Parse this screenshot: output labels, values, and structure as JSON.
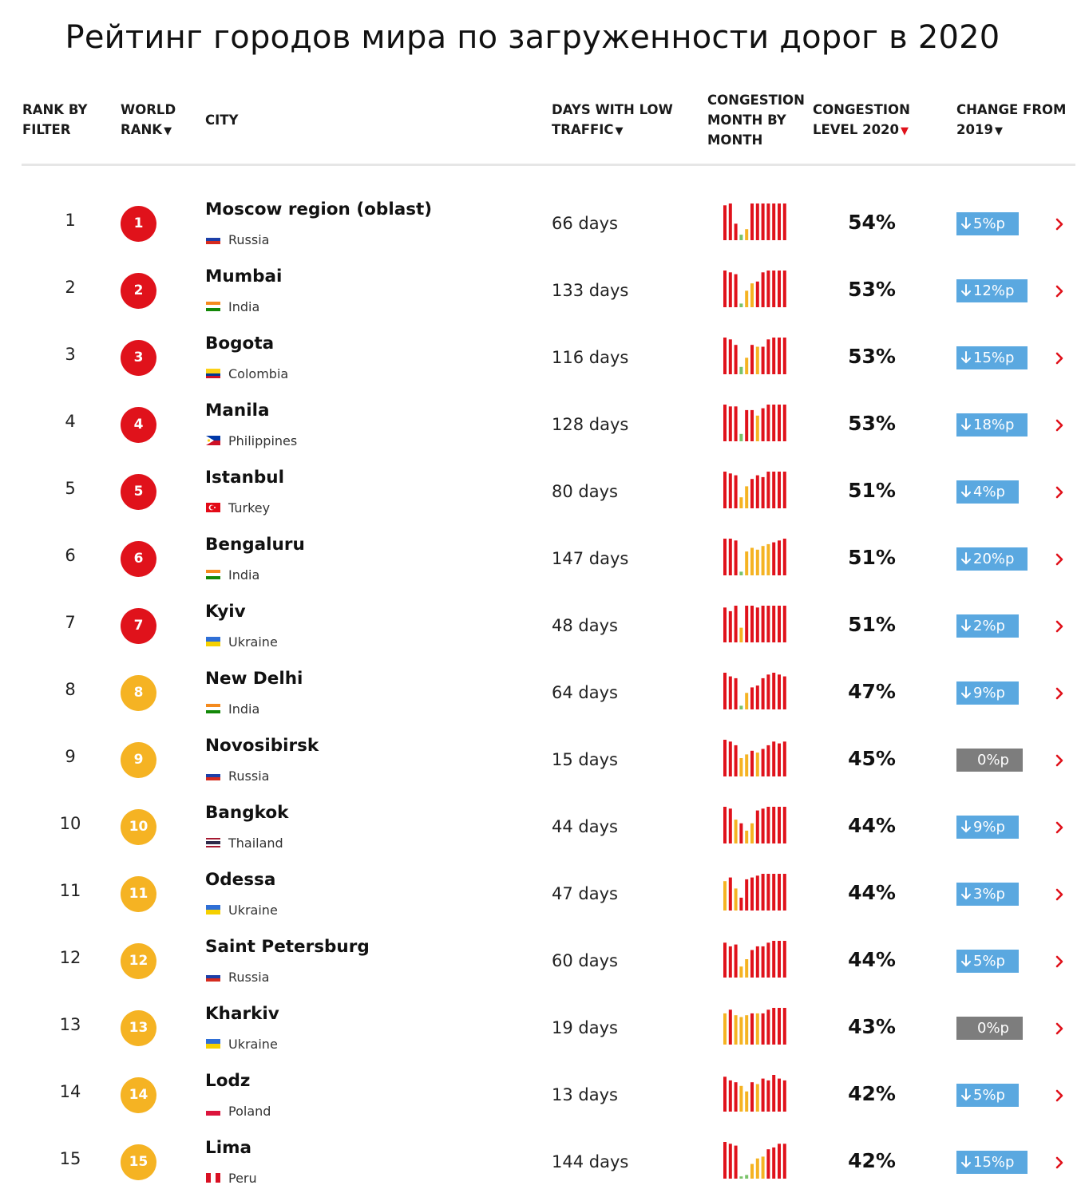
{
  "title": "Рейтинг городов мира по загруженности дорог в 2020",
  "colors": {
    "red": "#e0121b",
    "orange": "#f5b323",
    "green": "#7ac36a",
    "blue": "#5aa8e0",
    "gray": "#7d7d7d"
  },
  "columns": {
    "rank_filter": [
      "RANK BY",
      "FILTER"
    ],
    "world_rank": [
      "WORLD",
      "RANK"
    ],
    "city": "CITY",
    "days_low": [
      "DAYS WITH LOW",
      "TRAFFIC"
    ],
    "month_by_month": [
      "CONGESTION",
      "MONTH BY",
      "MONTH"
    ],
    "level": [
      "CONGESTION",
      "LEVEL 2020"
    ],
    "change": [
      "CHANGE FROM",
      "2019"
    ],
    "sort_glyph": "▼"
  },
  "rows": [
    {
      "rank": "1",
      "world": "1",
      "city": "Moscow region (oblast)",
      "country": "Russia",
      "flag": "russia",
      "days": "66 days",
      "level": "54%",
      "change": "5%p",
      "dir": "down",
      "tier": "red",
      "months": [
        [
          "r",
          0.95
        ],
        [
          "r",
          1.0
        ],
        [
          "r",
          0.45
        ],
        [
          "g",
          0.15
        ],
        [
          "y",
          0.3
        ],
        [
          "r",
          1.0
        ],
        [
          "r",
          1.0
        ],
        [
          "r",
          1.0
        ],
        [
          "r",
          1.0
        ],
        [
          "r",
          1.0
        ],
        [
          "r",
          1.0
        ],
        [
          "r",
          1.0
        ]
      ]
    },
    {
      "rank": "2",
      "world": "2",
      "city": "Mumbai",
      "country": "India",
      "flag": "india",
      "days": "133 days",
      "level": "53%",
      "change": "12%p",
      "dir": "down",
      "tier": "red",
      "months": [
        [
          "r",
          1.0
        ],
        [
          "r",
          0.95
        ],
        [
          "r",
          0.9
        ],
        [
          "g",
          0.1
        ],
        [
          "y",
          0.45
        ],
        [
          "y",
          0.65
        ],
        [
          "r",
          0.7
        ],
        [
          "r",
          0.95
        ],
        [
          "r",
          1.0
        ],
        [
          "r",
          1.0
        ],
        [
          "r",
          1.0
        ],
        [
          "r",
          1.0
        ]
      ]
    },
    {
      "rank": "3",
      "world": "3",
      "city": "Bogota",
      "country": "Colombia",
      "flag": "colombia",
      "days": "116 days",
      "level": "53%",
      "change": "15%p",
      "dir": "down",
      "tier": "red",
      "months": [
        [
          "r",
          1.0
        ],
        [
          "r",
          0.95
        ],
        [
          "r",
          0.8
        ],
        [
          "g",
          0.2
        ],
        [
          "y",
          0.45
        ],
        [
          "r",
          0.8
        ],
        [
          "y",
          0.75
        ],
        [
          "r",
          0.75
        ],
        [
          "r",
          0.95
        ],
        [
          "r",
          1.0
        ],
        [
          "r",
          1.0
        ],
        [
          "r",
          1.0
        ]
      ]
    },
    {
      "rank": "4",
      "world": "4",
      "city": "Manila",
      "country": "Philippines",
      "flag": "philippines",
      "days": "128 days",
      "level": "53%",
      "change": "18%p",
      "dir": "down",
      "tier": "red",
      "months": [
        [
          "r",
          1.0
        ],
        [
          "r",
          0.95
        ],
        [
          "r",
          0.95
        ],
        [
          "g",
          0.2
        ],
        [
          "r",
          0.85
        ],
        [
          "r",
          0.85
        ],
        [
          "y",
          0.7
        ],
        [
          "r",
          0.9
        ],
        [
          "r",
          1.0
        ],
        [
          "r",
          1.0
        ],
        [
          "r",
          1.0
        ],
        [
          "r",
          1.0
        ]
      ]
    },
    {
      "rank": "5",
      "world": "5",
      "city": "Istanbul",
      "country": "Turkey",
      "flag": "turkey",
      "days": "80 days",
      "level": "51%",
      "change": "4%p",
      "dir": "down",
      "tier": "red",
      "months": [
        [
          "r",
          1.0
        ],
        [
          "r",
          0.95
        ],
        [
          "r",
          0.9
        ],
        [
          "y",
          0.3
        ],
        [
          "y",
          0.6
        ],
        [
          "r",
          0.8
        ],
        [
          "r",
          0.9
        ],
        [
          "r",
          0.85
        ],
        [
          "r",
          1.0
        ],
        [
          "r",
          1.0
        ],
        [
          "r",
          1.0
        ],
        [
          "r",
          1.0
        ]
      ]
    },
    {
      "rank": "6",
      "world": "6",
      "city": "Bengaluru",
      "country": "India",
      "flag": "india",
      "days": "147 days",
      "level": "51%",
      "change": "20%p",
      "dir": "down",
      "tier": "red",
      "months": [
        [
          "r",
          1.0
        ],
        [
          "r",
          1.0
        ],
        [
          "r",
          0.95
        ],
        [
          "g",
          0.1
        ],
        [
          "y",
          0.65
        ],
        [
          "y",
          0.75
        ],
        [
          "y",
          0.7
        ],
        [
          "y",
          0.8
        ],
        [
          "y",
          0.85
        ],
        [
          "r",
          0.9
        ],
        [
          "r",
          0.95
        ],
        [
          "r",
          1.0
        ]
      ]
    },
    {
      "rank": "7",
      "world": "7",
      "city": "Kyiv",
      "country": "Ukraine",
      "flag": "ukraine",
      "days": "48 days",
      "level": "51%",
      "change": "2%p",
      "dir": "down",
      "tier": "red",
      "months": [
        [
          "r",
          0.95
        ],
        [
          "r",
          0.85
        ],
        [
          "r",
          1.0
        ],
        [
          "y",
          0.4
        ],
        [
          "r",
          1.0
        ],
        [
          "r",
          1.0
        ],
        [
          "r",
          0.95
        ],
        [
          "r",
          1.0
        ],
        [
          "r",
          1.0
        ],
        [
          "r",
          1.0
        ],
        [
          "r",
          1.0
        ],
        [
          "r",
          1.0
        ]
      ]
    },
    {
      "rank": "8",
      "world": "8",
      "city": "New Delhi",
      "country": "India",
      "flag": "india",
      "days": "64 days",
      "level": "47%",
      "change": "9%p",
      "dir": "down",
      "tier": "orange",
      "months": [
        [
          "r",
          1.0
        ],
        [
          "r",
          0.9
        ],
        [
          "r",
          0.85
        ],
        [
          "g",
          0.1
        ],
        [
          "y",
          0.45
        ],
        [
          "r",
          0.6
        ],
        [
          "r",
          0.65
        ],
        [
          "r",
          0.85
        ],
        [
          "r",
          0.95
        ],
        [
          "r",
          1.0
        ],
        [
          "r",
          0.95
        ],
        [
          "r",
          0.9
        ]
      ]
    },
    {
      "rank": "9",
      "world": "9",
      "city": "Novosibirsk",
      "country": "Russia",
      "flag": "russia",
      "days": "15 days",
      "level": "45%",
      "change": "0%p",
      "dir": "zero",
      "tier": "orange",
      "months": [
        [
          "r",
          1.0
        ],
        [
          "r",
          0.95
        ],
        [
          "r",
          0.85
        ],
        [
          "y",
          0.5
        ],
        [
          "y",
          0.6
        ],
        [
          "r",
          0.7
        ],
        [
          "y",
          0.65
        ],
        [
          "r",
          0.75
        ],
        [
          "r",
          0.85
        ],
        [
          "r",
          0.95
        ],
        [
          "r",
          0.9
        ],
        [
          "r",
          0.95
        ]
      ]
    },
    {
      "rank": "10",
      "world": "10",
      "city": "Bangkok",
      "country": "Thailand",
      "flag": "thailand",
      "days": "44 days",
      "level": "44%",
      "change": "9%p",
      "dir": "down",
      "tier": "orange",
      "months": [
        [
          "r",
          1.0
        ],
        [
          "r",
          0.95
        ],
        [
          "y",
          0.65
        ],
        [
          "r",
          0.55
        ],
        [
          "y",
          0.35
        ],
        [
          "y",
          0.55
        ],
        [
          "r",
          0.9
        ],
        [
          "r",
          0.95
        ],
        [
          "r",
          1.0
        ],
        [
          "r",
          1.0
        ],
        [
          "r",
          1.0
        ],
        [
          "r",
          1.0
        ]
      ]
    },
    {
      "rank": "11",
      "world": "11",
      "city": "Odessa",
      "country": "Ukraine",
      "flag": "ukraine",
      "days": "47 days",
      "level": "44%",
      "change": "3%p",
      "dir": "down",
      "tier": "orange",
      "months": [
        [
          "y",
          0.8
        ],
        [
          "r",
          0.9
        ],
        [
          "y",
          0.6
        ],
        [
          "r",
          0.35
        ],
        [
          "r",
          0.85
        ],
        [
          "r",
          0.9
        ],
        [
          "r",
          0.95
        ],
        [
          "r",
          1.0
        ],
        [
          "r",
          1.0
        ],
        [
          "r",
          1.0
        ],
        [
          "r",
          1.0
        ],
        [
          "r",
          1.0
        ]
      ]
    },
    {
      "rank": "12",
      "world": "12",
      "city": "Saint Petersburg",
      "country": "Russia",
      "flag": "russia",
      "days": "60 days",
      "level": "44%",
      "change": "5%p",
      "dir": "down",
      "tier": "orange",
      "months": [
        [
          "r",
          0.95
        ],
        [
          "r",
          0.85
        ],
        [
          "r",
          0.9
        ],
        [
          "y",
          0.3
        ],
        [
          "y",
          0.5
        ],
        [
          "r",
          0.75
        ],
        [
          "r",
          0.85
        ],
        [
          "r",
          0.85
        ],
        [
          "r",
          0.95
        ],
        [
          "r",
          1.0
        ],
        [
          "r",
          1.0
        ],
        [
          "r",
          1.0
        ]
      ]
    },
    {
      "rank": "13",
      "world": "13",
      "city": "Kharkiv",
      "country": "Ukraine",
      "flag": "ukraine",
      "days": "19 days",
      "level": "43%",
      "change": "0%p",
      "dir": "zero",
      "tier": "orange",
      "months": [
        [
          "y",
          0.85
        ],
        [
          "r",
          0.95
        ],
        [
          "y",
          0.8
        ],
        [
          "y",
          0.75
        ],
        [
          "y",
          0.8
        ],
        [
          "r",
          0.85
        ],
        [
          "y",
          0.85
        ],
        [
          "r",
          0.85
        ],
        [
          "r",
          0.95
        ],
        [
          "r",
          1.0
        ],
        [
          "r",
          1.0
        ],
        [
          "r",
          1.0
        ]
      ]
    },
    {
      "rank": "14",
      "world": "14",
      "city": "Lodz",
      "country": "Poland",
      "flag": "poland",
      "days": "13 days",
      "level": "42%",
      "change": "5%p",
      "dir": "down",
      "tier": "orange",
      "months": [
        [
          "r",
          0.95
        ],
        [
          "r",
          0.85
        ],
        [
          "r",
          0.8
        ],
        [
          "y",
          0.7
        ],
        [
          "y",
          0.55
        ],
        [
          "r",
          0.8
        ],
        [
          "y",
          0.75
        ],
        [
          "r",
          0.9
        ],
        [
          "r",
          0.85
        ],
        [
          "r",
          1.0
        ],
        [
          "r",
          0.9
        ],
        [
          "r",
          0.85
        ]
      ]
    },
    {
      "rank": "15",
      "world": "15",
      "city": "Lima",
      "country": "Peru",
      "flag": "peru",
      "days": "144 days",
      "level": "42%",
      "change": "15%p",
      "dir": "down",
      "tier": "orange",
      "months": [
        [
          "r",
          1.0
        ],
        [
          "r",
          0.95
        ],
        [
          "r",
          0.9
        ],
        [
          "g",
          0.06
        ],
        [
          "g",
          0.1
        ],
        [
          "y",
          0.4
        ],
        [
          "y",
          0.55
        ],
        [
          "y",
          0.6
        ],
        [
          "r",
          0.8
        ],
        [
          "r",
          0.85
        ],
        [
          "r",
          0.95
        ],
        [
          "r",
          0.95
        ]
      ]
    }
  ]
}
